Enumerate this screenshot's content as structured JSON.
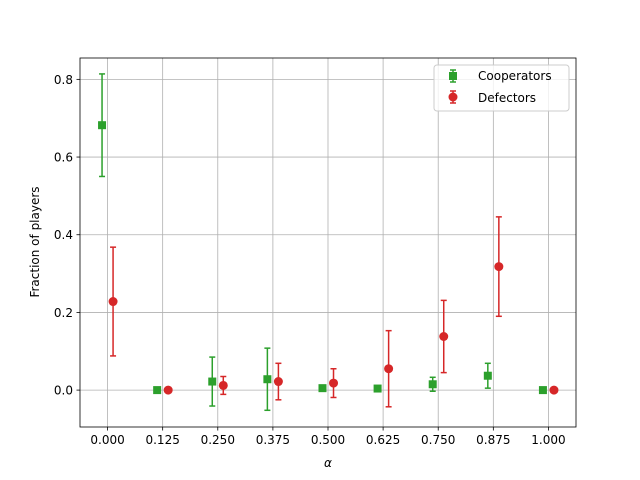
{
  "chart_data": {
    "type": "scatter",
    "xlabel": "α",
    "ylabel": "Fraction of players",
    "xlim": [
      -0.0625,
      1.0625
    ],
    "ylim": [
      -0.095,
      0.855
    ],
    "grid": true,
    "legend_position": "top-right",
    "x_ticks": [
      "0.000",
      "0.125",
      "0.250",
      "0.375",
      "0.500",
      "0.625",
      "0.750",
      "0.875",
      "1.000"
    ],
    "y_ticks": [
      "0.0",
      "0.2",
      "0.4",
      "0.6",
      "0.8"
    ],
    "series": [
      {
        "name": "Cooperators",
        "marker": "square",
        "color": "#2ca02c",
        "points": [
          {
            "x": -0.0125,
            "y": 0.682,
            "err": 0.132
          },
          {
            "x": 0.1125,
            "y": 0.0,
            "err": 0.0
          },
          {
            "x": 0.2375,
            "y": 0.022,
            "err": 0.063
          },
          {
            "x": 0.3625,
            "y": 0.028,
            "err": 0.08
          },
          {
            "x": 0.4875,
            "y": 0.005,
            "err": 0.0
          },
          {
            "x": 0.6125,
            "y": 0.004,
            "err": 0.0
          },
          {
            "x": 0.7375,
            "y": 0.015,
            "err": 0.018
          },
          {
            "x": 0.8625,
            "y": 0.037,
            "err": 0.032
          },
          {
            "x": 0.9875,
            "y": 0.0,
            "err": 0.0
          }
        ]
      },
      {
        "name": "Defectors",
        "marker": "circle",
        "color": "#d62728",
        "points": [
          {
            "x": 0.0125,
            "y": 0.228,
            "err": 0.14
          },
          {
            "x": 0.1375,
            "y": 0.0,
            "err": 0.0
          },
          {
            "x": 0.2625,
            "y": 0.012,
            "err": 0.023
          },
          {
            "x": 0.3875,
            "y": 0.022,
            "err": 0.047
          },
          {
            "x": 0.5125,
            "y": 0.018,
            "err": 0.037
          },
          {
            "x": 0.6375,
            "y": 0.055,
            "err": 0.098
          },
          {
            "x": 0.7625,
            "y": 0.138,
            "err": 0.093
          },
          {
            "x": 0.8875,
            "y": 0.318,
            "err": 0.128
          },
          {
            "x": 1.0125,
            "y": 0.0,
            "err": 0.0
          }
        ]
      }
    ]
  }
}
